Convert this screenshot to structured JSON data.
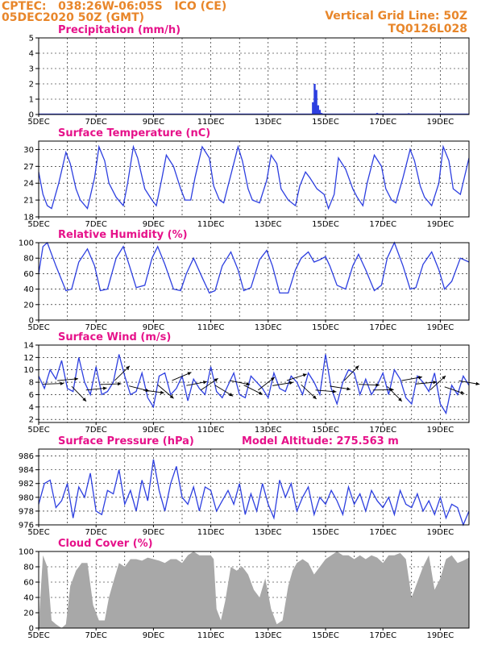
{
  "header": {
    "line1_left": "CPTEC:   038:26W-06:05S   ICO (CE)",
    "line2_left": "05DEC2020 50Z (GMT)",
    "line1_right": "Vertical Grid Line: 50Z",
    "line2_right": "TQ0126L028"
  },
  "colors": {
    "header": "#e8862a",
    "title": "#e6128a",
    "line": "#2d3fe0",
    "bar": "#2d3fe0",
    "cloud": "#a8a8a8"
  },
  "x_axis": {
    "start_day": 5,
    "end_day": 20,
    "labels": [
      "5DEC",
      "7DEC",
      "9DEC",
      "11DEC",
      "13DEC",
      "15DEC",
      "17DEC",
      "19DEC"
    ],
    "label_days": [
      5,
      7,
      9,
      11,
      13,
      15,
      17,
      19
    ]
  },
  "chart_data": [
    {
      "type": "bar",
      "key": "precip",
      "title": "Precipitation (mm/h)",
      "ylim": [
        0,
        5
      ],
      "yticks": [
        0,
        1,
        2,
        3,
        4,
        5
      ],
      "x": [
        14.56,
        14.62,
        14.68,
        14.74,
        14.8,
        14.86,
        16.8,
        17.3,
        17.9
      ],
      "values": [
        0.8,
        2.0,
        1.6,
        0.6,
        0.3,
        0.1,
        0.1,
        0.05,
        0.08
      ]
    },
    {
      "type": "line",
      "key": "temp",
      "title": "Surface Temperature (nC)",
      "ylim": [
        18,
        31.5
      ],
      "yticks": [
        18,
        21,
        24,
        27,
        30
      ],
      "x": [
        5.0,
        5.15,
        5.3,
        5.45,
        5.7,
        5.95,
        6.1,
        6.3,
        6.45,
        6.7,
        6.95,
        7.1,
        7.3,
        7.45,
        7.7,
        7.95,
        8.1,
        8.3,
        8.45,
        8.7,
        8.95,
        9.1,
        9.3,
        9.45,
        9.7,
        9.95,
        10.1,
        10.3,
        10.45,
        10.7,
        10.95,
        11.1,
        11.3,
        11.45,
        11.7,
        11.95,
        12.1,
        12.3,
        12.45,
        12.7,
        12.95,
        13.1,
        13.3,
        13.45,
        13.7,
        13.95,
        14.1,
        14.3,
        14.45,
        14.7,
        14.95,
        15.1,
        15.3,
        15.45,
        15.7,
        15.95,
        16.1,
        16.3,
        16.45,
        16.7,
        16.95,
        17.1,
        17.3,
        17.45,
        17.7,
        17.95,
        18.1,
        18.3,
        18.45,
        18.7,
        18.95,
        19.1,
        19.3,
        19.45,
        19.7,
        20.0
      ],
      "values": [
        26.0,
        22.0,
        20.0,
        19.5,
        24.0,
        29.5,
        27.5,
        23.0,
        21.0,
        19.5,
        25.0,
        30.5,
        28.0,
        24.0,
        21.5,
        20.0,
        24.0,
        30.5,
        28.5,
        23.0,
        21.0,
        20.0,
        25.0,
        29.0,
        27.0,
        23.0,
        21.0,
        21.0,
        25.0,
        30.5,
        28.5,
        23.5,
        21.0,
        20.5,
        25.5,
        30.5,
        28.0,
        23.0,
        21.0,
        20.5,
        24.5,
        29.0,
        27.5,
        23.0,
        21.0,
        20.0,
        23.5,
        26.0,
        25.0,
        23.0,
        22.0,
        19.5,
        22.0,
        28.5,
        26.5,
        23.0,
        21.5,
        20.0,
        24.0,
        29.0,
        27.0,
        23.0,
        21.0,
        20.5,
        25.0,
        30.0,
        28.0,
        23.5,
        21.5,
        20.0,
        24.0,
        30.5,
        28.0,
        23.0,
        22.0,
        28.5
      ]
    },
    {
      "type": "line",
      "key": "rh",
      "title": "Relative Humidity (%)",
      "ylim": [
        0,
        100
      ],
      "yticks": [
        0,
        20,
        40,
        60,
        80,
        100
      ],
      "x": [
        5.0,
        5.15,
        5.3,
        5.6,
        5.95,
        6.15,
        6.4,
        6.7,
        6.95,
        7.15,
        7.4,
        7.7,
        7.95,
        8.15,
        8.4,
        8.7,
        8.95,
        9.15,
        9.4,
        9.7,
        9.95,
        10.15,
        10.4,
        10.7,
        10.95,
        11.15,
        11.4,
        11.7,
        11.95,
        12.15,
        12.4,
        12.7,
        12.95,
        13.15,
        13.4,
        13.7,
        13.95,
        14.15,
        14.4,
        14.6,
        14.8,
        15.0,
        15.15,
        15.4,
        15.7,
        15.95,
        16.15,
        16.4,
        16.7,
        16.95,
        17.15,
        17.4,
        17.7,
        17.95,
        18.15,
        18.4,
        18.7,
        18.95,
        19.15,
        19.4,
        19.7,
        20.0
      ],
      "values": [
        60,
        95,
        100,
        70,
        38,
        40,
        75,
        92,
        70,
        38,
        40,
        80,
        95,
        72,
        42,
        45,
        80,
        95,
        72,
        40,
        38,
        60,
        80,
        55,
        35,
        38,
        70,
        88,
        65,
        38,
        42,
        78,
        90,
        70,
        35,
        35,
        65,
        80,
        88,
        75,
        78,
        82,
        70,
        45,
        40,
        70,
        85,
        65,
        38,
        45,
        80,
        100,
        70,
        40,
        42,
        72,
        88,
        65,
        40,
        50,
        80,
        75
      ]
    },
    {
      "type": "line",
      "key": "wind",
      "title": "Surface Wind (m/s)",
      "ylim": [
        1.5,
        14
      ],
      "yticks": [
        2,
        4,
        6,
        8,
        10,
        12,
        14
      ],
      "x": [
        5.0,
        5.2,
        5.4,
        5.6,
        5.8,
        6.0,
        6.2,
        6.4,
        6.6,
        6.8,
        7.0,
        7.2,
        7.4,
        7.6,
        7.8,
        8.0,
        8.2,
        8.4,
        8.6,
        8.8,
        9.0,
        9.2,
        9.4,
        9.6,
        9.8,
        10.0,
        10.2,
        10.4,
        10.6,
        10.8,
        11.0,
        11.2,
        11.4,
        11.6,
        11.8,
        12.0,
        12.2,
        12.4,
        12.6,
        12.8,
        13.0,
        13.2,
        13.4,
        13.6,
        13.8,
        14.0,
        14.2,
        14.4,
        14.6,
        14.8,
        15.0,
        15.2,
        15.4,
        15.6,
        15.8,
        16.0,
        16.2,
        16.4,
        16.6,
        16.8,
        17.0,
        17.2,
        17.4,
        17.6,
        17.8,
        18.0,
        18.2,
        18.4,
        18.6,
        18.8,
        19.0,
        19.2,
        19.4,
        19.6,
        19.8,
        20.0
      ],
      "values": [
        9.0,
        7.0,
        10.0,
        8.5,
        11.5,
        7.0,
        6.5,
        12.0,
        8.0,
        6.0,
        10.5,
        6.0,
        6.5,
        8.0,
        12.5,
        9.0,
        6.0,
        6.5,
        9.5,
        5.5,
        4.0,
        9.0,
        9.5,
        6.0,
        7.0,
        9.0,
        5.0,
        8.5,
        7.0,
        6.0,
        10.5,
        6.5,
        5.5,
        7.5,
        9.5,
        6.0,
        5.5,
        9.0,
        8.0,
        7.0,
        5.5,
        9.5,
        7.0,
        6.5,
        9.0,
        8.0,
        6.0,
        9.5,
        8.0,
        6.0,
        12.5,
        7.0,
        4.5,
        8.0,
        10.0,
        9.5,
        6.0,
        8.5,
        6.0,
        7.5,
        9.5,
        6.0,
        10.0,
        8.5,
        5.5,
        4.5,
        9.0,
        8.0,
        6.5,
        9.5,
        4.5,
        3.0,
        7.5,
        6.0,
        9.0,
        7.5
      ]
    },
    {
      "type": "line",
      "key": "pres",
      "title": "Surface Pressure (hPa)",
      "annotation": "Model Altitude: 275.563 m",
      "ylim": [
        976,
        987
      ],
      "yticks": [
        976,
        978,
        980,
        982,
        984,
        986
      ],
      "x": [
        5.0,
        5.2,
        5.4,
        5.6,
        5.8,
        6.0,
        6.2,
        6.4,
        6.6,
        6.8,
        7.0,
        7.2,
        7.4,
        7.6,
        7.8,
        8.0,
        8.2,
        8.4,
        8.6,
        8.8,
        9.0,
        9.2,
        9.4,
        9.6,
        9.8,
        10.0,
        10.2,
        10.4,
        10.6,
        10.8,
        11.0,
        11.2,
        11.4,
        11.6,
        11.8,
        12.0,
        12.2,
        12.4,
        12.6,
        12.8,
        13.0,
        13.2,
        13.4,
        13.6,
        13.8,
        14.0,
        14.2,
        14.4,
        14.6,
        14.8,
        15.0,
        15.2,
        15.4,
        15.6,
        15.8,
        16.0,
        16.2,
        16.4,
        16.6,
        16.8,
        17.0,
        17.2,
        17.4,
        17.6,
        17.8,
        18.0,
        18.2,
        18.4,
        18.6,
        18.8,
        19.0,
        19.2,
        19.4,
        19.6,
        19.8,
        20.0
      ],
      "values": [
        979.0,
        982.0,
        982.5,
        978.5,
        979.5,
        982.0,
        977.0,
        981.5,
        980.0,
        983.5,
        978.0,
        977.5,
        981.0,
        980.5,
        984.0,
        979.0,
        981.0,
        978.0,
        982.5,
        979.5,
        985.5,
        981.0,
        978.0,
        982.0,
        984.5,
        980.0,
        979.0,
        981.5,
        978.0,
        981.5,
        981.0,
        978.0,
        979.5,
        981.0,
        979.0,
        982.0,
        977.5,
        980.5,
        978.0,
        982.0,
        979.0,
        977.0,
        982.5,
        980.0,
        982.0,
        978.0,
        980.0,
        981.5,
        977.5,
        980.0,
        979.0,
        981.0,
        979.5,
        977.5,
        981.5,
        979.0,
        980.5,
        978.0,
        981.0,
        979.5,
        978.5,
        980.0,
        977.5,
        981.0,
        979.0,
        978.5,
        980.5,
        978.0,
        979.5,
        977.5,
        980.0,
        977.0,
        979.0,
        978.5,
        976.0,
        978.0
      ]
    },
    {
      "type": "area",
      "key": "cloud",
      "title": "Cloud Cover (%)",
      "ylim": [
        0,
        100
      ],
      "yticks": [
        0,
        20,
        40,
        60,
        80,
        100
      ],
      "x": [
        5.0,
        5.15,
        5.3,
        5.45,
        5.6,
        5.8,
        5.95,
        6.1,
        6.3,
        6.5,
        6.7,
        6.9,
        7.1,
        7.3,
        7.45,
        7.6,
        7.8,
        8.0,
        8.2,
        8.4,
        8.6,
        8.8,
        9.0,
        9.2,
        9.4,
        9.6,
        9.8,
        10.0,
        10.2,
        10.4,
        10.6,
        10.8,
        11.0,
        11.1,
        11.2,
        11.35,
        11.5,
        11.7,
        11.9,
        12.1,
        12.3,
        12.5,
        12.7,
        12.9,
        13.1,
        13.3,
        13.5,
        13.7,
        13.85,
        14.0,
        14.2,
        14.4,
        14.6,
        14.8,
        15.0,
        15.2,
        15.4,
        15.6,
        15.8,
        16.0,
        16.2,
        16.4,
        16.6,
        16.8,
        17.0,
        17.2,
        17.4,
        17.6,
        17.8,
        18.0,
        18.2,
        18.4,
        18.6,
        18.8,
        19.0,
        19.2,
        19.4,
        19.6,
        19.8,
        20.0
      ],
      "values": [
        5,
        95,
        80,
        10,
        5,
        0,
        5,
        55,
        75,
        85,
        85,
        30,
        10,
        10,
        40,
        60,
        85,
        80,
        90,
        90,
        88,
        92,
        90,
        88,
        85,
        90,
        90,
        85,
        95,
        100,
        95,
        95,
        95,
        90,
        25,
        10,
        35,
        80,
        75,
        80,
        70,
        50,
        40,
        65,
        25,
        5,
        10,
        55,
        75,
        85,
        90,
        85,
        70,
        80,
        90,
        95,
        100,
        95,
        95,
        90,
        95,
        90,
        95,
        92,
        85,
        95,
        95,
        98,
        90,
        40,
        60,
        80,
        95,
        50,
        65,
        90,
        95,
        85,
        88,
        92
      ]
    }
  ]
}
